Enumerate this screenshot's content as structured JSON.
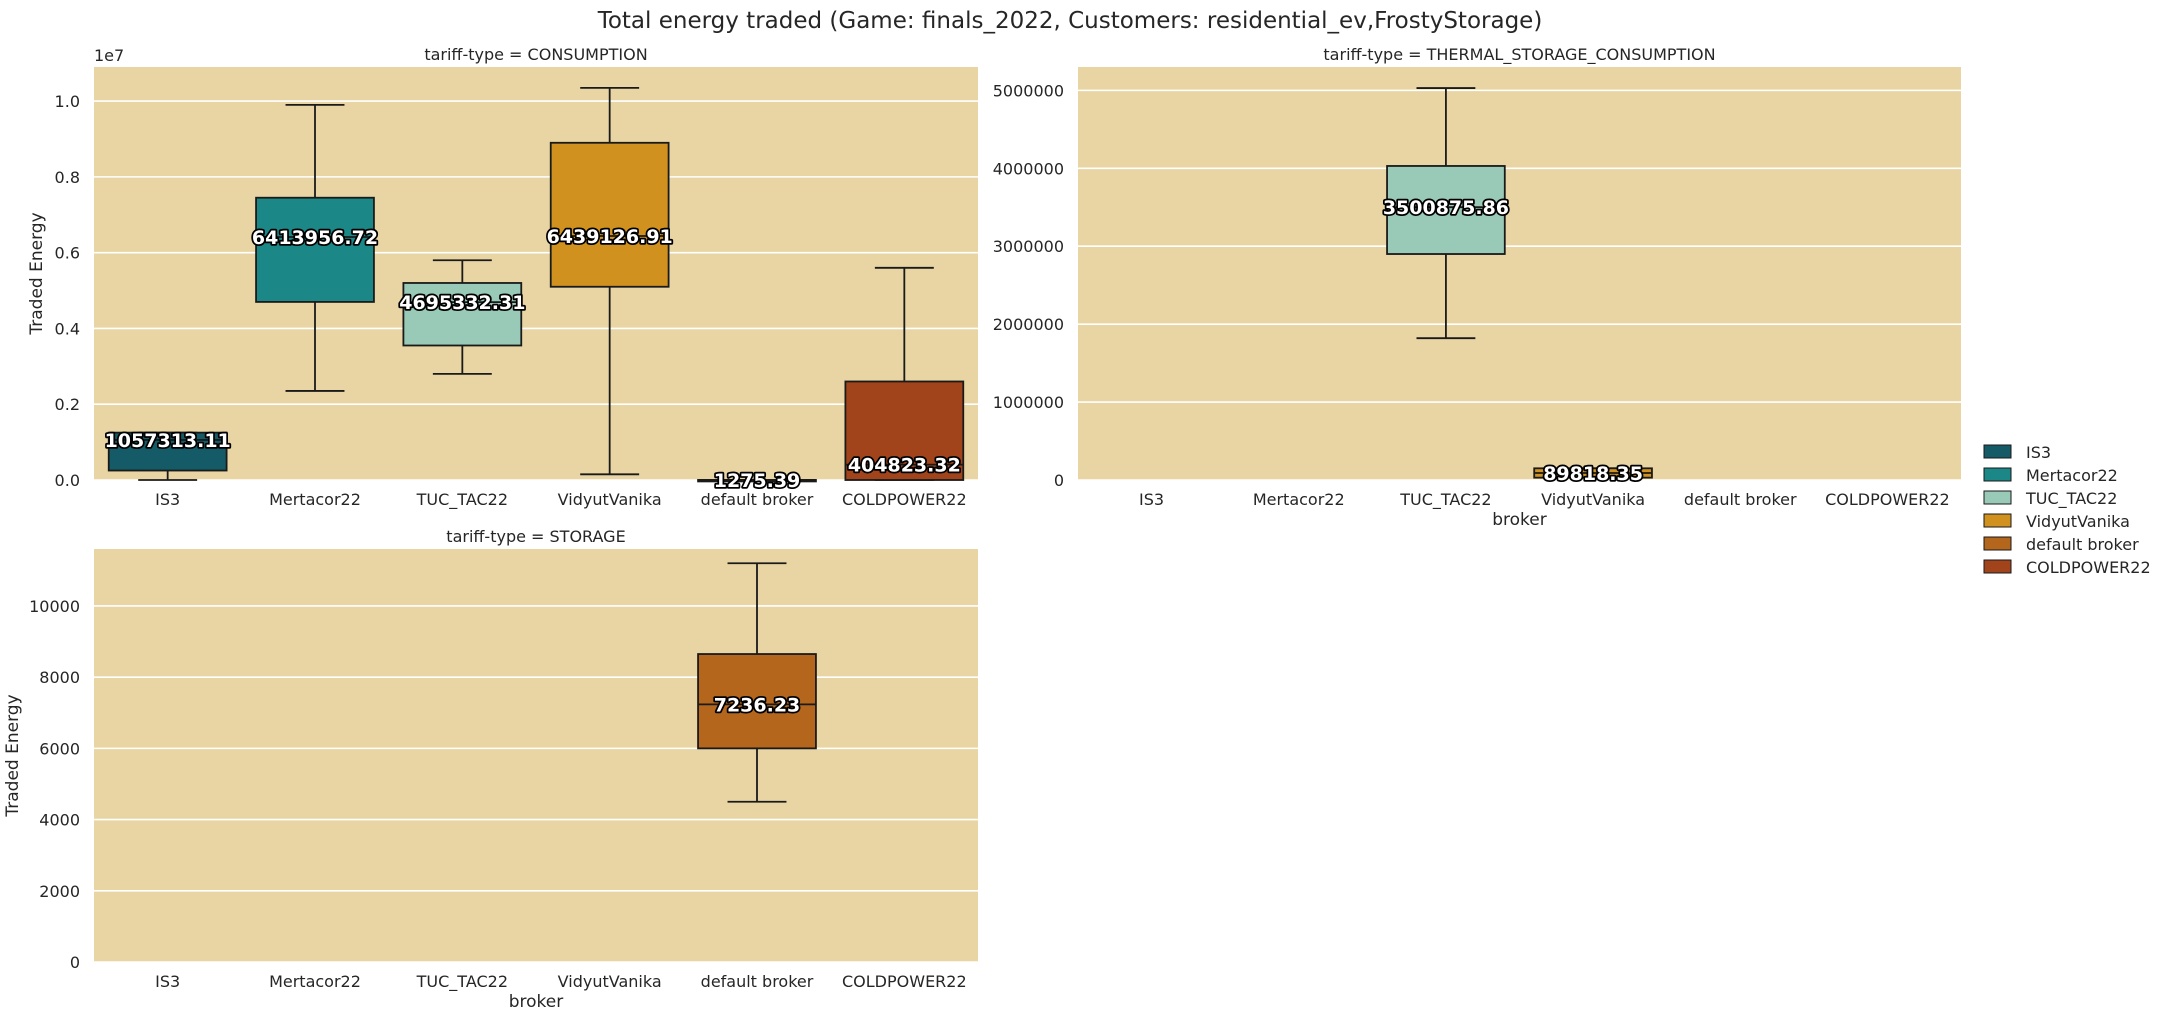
{
  "title": "Total energy traded (Game: finals_2022, Customers: residential_ev,FrostyStorage)",
  "colors": {
    "plot_bg": "#e8d5a3",
    "grid": "#ffffff",
    "IS3": "#145a67",
    "Mertacor22": "#1b8787",
    "TUC_TAC22": "#99c9b7",
    "VidyutVanika": "#d0911f",
    "default broker": "#b3661c",
    "COLDPOWER22": "#a1441b"
  },
  "legend": {
    "position": "right",
    "items": [
      {
        "label": "IS3",
        "color": "#145a67"
      },
      {
        "label": "Mertacor22",
        "color": "#1b8787"
      },
      {
        "label": "TUC_TAC22",
        "color": "#99c9b7"
      },
      {
        "label": "VidyutVanika",
        "color": "#d0911f"
      },
      {
        "label": "default broker",
        "color": "#b3661c"
      },
      {
        "label": "COLDPOWER22",
        "color": "#a1441b"
      }
    ]
  },
  "chart_data": [
    {
      "type": "box",
      "title": "tariff-type = CONSUMPTION",
      "xlabel": "",
      "ylabel": "Traded Energy",
      "y_offset_label": "1e7",
      "categories": [
        "IS3",
        "Mertacor22",
        "TUC_TAC22",
        "VidyutVanika",
        "default broker",
        "COLDPOWER22"
      ],
      "ylim": [
        0,
        10900000
      ],
      "yticks": [
        0,
        2000000,
        4000000,
        6000000,
        8000000,
        10000000
      ],
      "ytick_labels": [
        "0.0",
        "0.2",
        "0.4",
        "0.6",
        "0.8",
        "1.0"
      ],
      "grid": true,
      "boxes": [
        {
          "broker": "IS3",
          "whislo": 0,
          "q1": 250000,
          "median": 1057313.11,
          "q3": 1250000,
          "whishi": 1250000,
          "label": "1057313.11"
        },
        {
          "broker": "Mertacor22",
          "whislo": 2350000,
          "q1": 4700000,
          "median": 6413956.72,
          "q3": 7450000,
          "whishi": 9900000,
          "label": "6413956.72"
        },
        {
          "broker": "TUC_TAC22",
          "whislo": 2800000,
          "q1": 3550000,
          "median": 4695332.31,
          "q3": 5200000,
          "whishi": 5800000,
          "label": "4695332.31"
        },
        {
          "broker": "VidyutVanika",
          "whislo": 150000,
          "q1": 5100000,
          "median": 6439126.91,
          "q3": 8900000,
          "whishi": 10350000,
          "label": "6439126.91"
        },
        {
          "broker": "default broker",
          "whislo": 0,
          "q1": 0,
          "median": 1275.39,
          "q3": 2000,
          "whishi": 2000,
          "label": "1275.39"
        },
        {
          "broker": "COLDPOWER22",
          "whislo": 0,
          "q1": 0,
          "median": 404823.32,
          "q3": 2600000,
          "whishi": 5600000,
          "label": "404823.32"
        }
      ]
    },
    {
      "type": "box",
      "title": "tariff-type = THERMAL_STORAGE_CONSUMPTION",
      "xlabel": "broker",
      "ylabel": "",
      "categories": [
        "IS3",
        "Mertacor22",
        "TUC_TAC22",
        "VidyutVanika",
        "default broker",
        "COLDPOWER22"
      ],
      "ylim": [
        0,
        5300000
      ],
      "yticks": [
        0,
        1000000,
        2000000,
        3000000,
        4000000,
        5000000
      ],
      "ytick_labels": [
        "0",
        "1000000",
        "2000000",
        "3000000",
        "4000000",
        "5000000"
      ],
      "grid": true,
      "boxes": [
        {
          "broker": "TUC_TAC22",
          "whislo": 1820000,
          "q1": 2900000,
          "median": 3500875.86,
          "q3": 4030000,
          "whishi": 5030000,
          "label": "3500875.86"
        },
        {
          "broker": "VidyutVanika",
          "whislo": 30000,
          "q1": 30000,
          "median": 89818.35,
          "q3": 150000,
          "whishi": 150000,
          "label": "89818.35"
        }
      ]
    },
    {
      "type": "box",
      "title": "tariff-type = STORAGE",
      "xlabel": "broker",
      "ylabel": "Traded Energy",
      "categories": [
        "IS3",
        "Mertacor22",
        "TUC_TAC22",
        "VidyutVanika",
        "default broker",
        "COLDPOWER22"
      ],
      "ylim": [
        0,
        11600
      ],
      "yticks": [
        0,
        2000,
        4000,
        6000,
        8000,
        10000
      ],
      "ytick_labels": [
        "0",
        "2000",
        "4000",
        "6000",
        "8000",
        "10000"
      ],
      "grid": true,
      "boxes": [
        {
          "broker": "default broker",
          "whislo": 4500,
          "q1": 6000,
          "median": 7236.23,
          "q3": 8650,
          "whishi": 11200,
          "label": "7236.23"
        }
      ]
    }
  ]
}
